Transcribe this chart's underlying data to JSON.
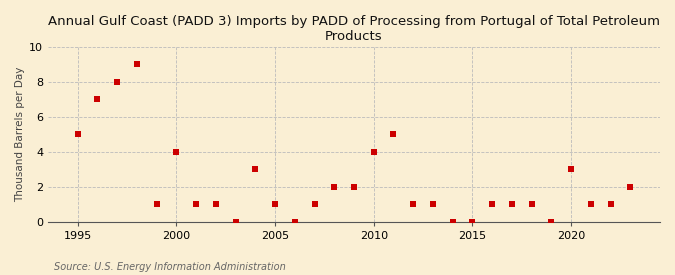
{
  "title": "Annual Gulf Coast (PADD 3) Imports by PADD of Processing from Portugal of Total Petroleum\nProducts",
  "ylabel": "Thousand Barrels per Day",
  "source": "Source: U.S. Energy Information Administration",
  "years": [
    1995,
    1996,
    1997,
    1998,
    1999,
    2000,
    2001,
    2002,
    2003,
    2004,
    2005,
    2006,
    2007,
    2008,
    2009,
    2010,
    2011,
    2012,
    2013,
    2014,
    2015,
    2016,
    2017,
    2018,
    2019,
    2020,
    2021,
    2022,
    2023
  ],
  "values": [
    5,
    7,
    8,
    9,
    1,
    4,
    1,
    1,
    0,
    3,
    1,
    0,
    1,
    2,
    2,
    4,
    5,
    1,
    1,
    0,
    0,
    1,
    1,
    1,
    0,
    3,
    1,
    1,
    2
  ],
  "marker_color": "#cc0000",
  "marker_size": 4,
  "bg_color": "#faefd4",
  "grid_color": "#bbbbbb",
  "xlim": [
    1993.5,
    2024.5
  ],
  "ylim": [
    0,
    10
  ],
  "yticks": [
    0,
    2,
    4,
    6,
    8,
    10
  ],
  "xticks": [
    1995,
    2000,
    2005,
    2010,
    2015,
    2020
  ],
  "title_fontsize": 9.5,
  "ylabel_fontsize": 7.5,
  "tick_fontsize": 8,
  "source_fontsize": 7
}
